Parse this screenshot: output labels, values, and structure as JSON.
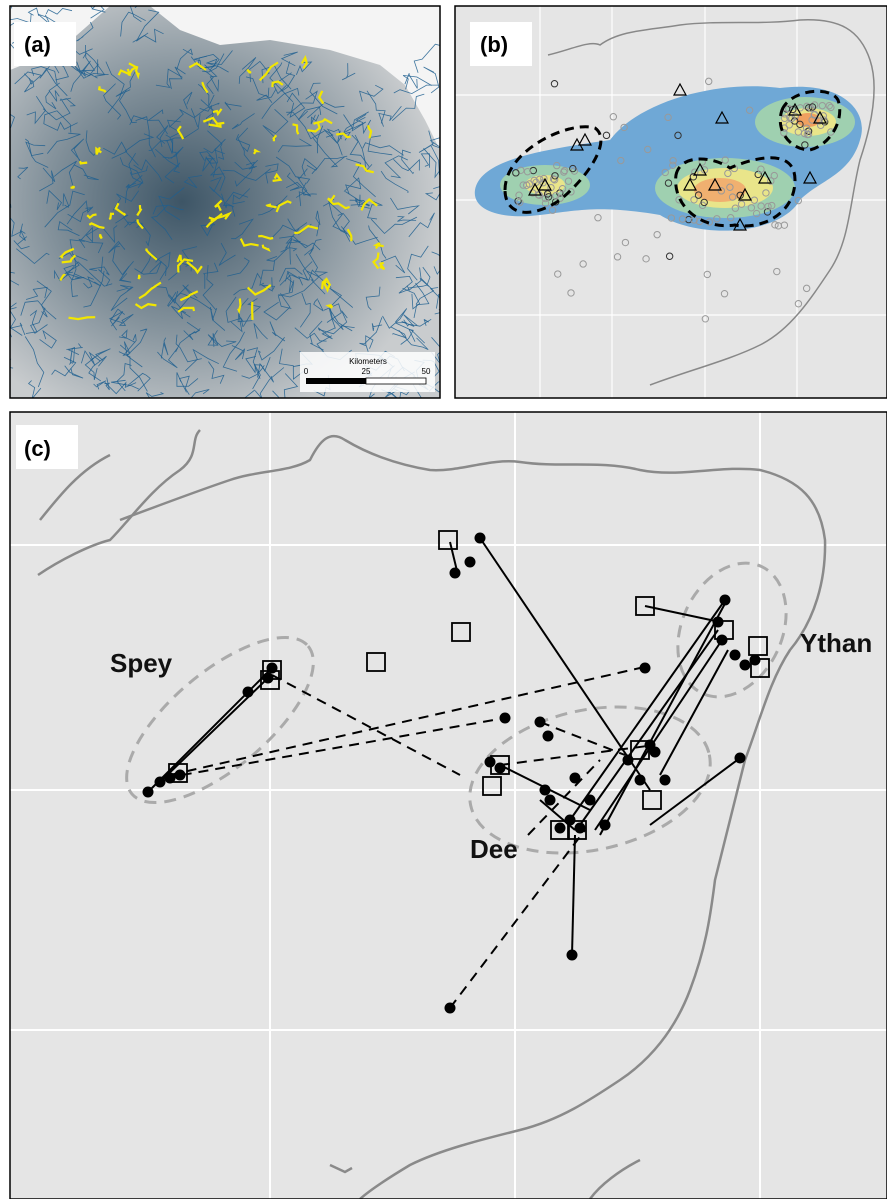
{
  "panels": [
    {
      "label": "(a)",
      "scale_bar": {
        "title": "Kilometers",
        "ticks": [
          "0",
          "25",
          "50"
        ]
      }
    },
    {
      "label": "(b)"
    },
    {
      "label": "(c)",
      "rivers": [
        "Spey",
        "Dee",
        "Ythan"
      ]
    }
  ]
}
